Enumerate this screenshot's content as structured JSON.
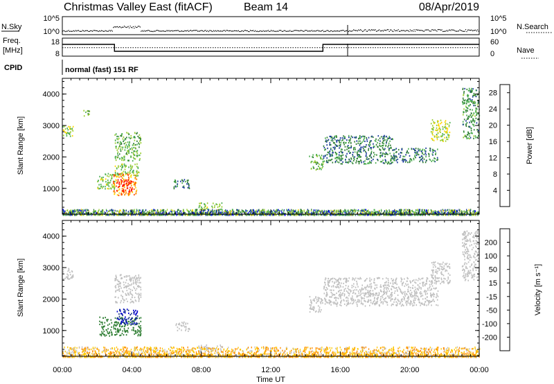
{
  "header": {
    "station": "Christmas Valley East (fitACF)",
    "beam": "Beam 14",
    "date": "08/Apr/2019"
  },
  "status_panels": {
    "nsky_label": "N.Sky",
    "nsearch_label": "N.Search",
    "noise_ticks": [
      "10^5",
      "10^0"
    ],
    "freq_label_line1": "Freq.",
    "freq_label_line2": "[MHz]",
    "freq_ticks": [
      "18",
      "8"
    ],
    "nave_label": "Nave",
    "nave_ticks": [
      "60",
      "0"
    ],
    "cpid_label": "CPID",
    "cpid_value": "normal (fast) 151 RF"
  },
  "colors": {
    "power_scale": [
      "#0000ff",
      "#1c3c9c",
      "#2e7d32",
      "#4caf50",
      "#9acd32",
      "#ffd700",
      "#ff8c00",
      "#ff4500",
      "#ff0000"
    ],
    "velocity_scale": [
      "#0000cc",
      "#1e3c8c",
      "#2e7d32",
      "#66cc33",
      "#c0c0c0",
      "#ffc800",
      "#ff8c00",
      "#ff5a00",
      "#ff0000"
    ],
    "ground_scatter": "#bebebe"
  },
  "chart_data": [
    {
      "type": "line",
      "name": "noise",
      "ylabel": "N.Sky",
      "yticks": [
        "10^5",
        "10^0"
      ],
      "description_series": [
        {
          "x": [
            0,
            2.9,
            3.0,
            4.5,
            16.4,
            24
          ],
          "y": [
            1.0,
            1.0,
            1.2,
            1.0,
            0.9,
            1.0
          ]
        }
      ]
    },
    {
      "type": "line",
      "name": "frequency",
      "ylabel": "Freq. [MHz]",
      "yticks": [
        "18",
        "8"
      ],
      "series": [
        {
          "x": [
            0,
            3.0,
            3.0,
            15.0,
            15.0,
            24
          ],
          "y": [
            14.5,
            14.5,
            9.5,
            9.5,
            14.5,
            14.5
          ]
        }
      ],
      "nave_series": {
        "x": [
          0,
          24
        ],
        "y": [
          33,
          33
        ]
      }
    },
    {
      "type": "heatmap",
      "name": "power",
      "xlabel": "",
      "ylabel": "Slant Range [km]",
      "xlim": [
        0,
        24
      ],
      "ylim": [
        180,
        4500
      ],
      "yticks": [
        1000,
        2000,
        3000,
        4000
      ],
      "colorbar": {
        "label": "Power [dB]",
        "ticks": [
          4,
          8,
          12,
          16,
          20,
          24,
          28
        ],
        "range": [
          0,
          30
        ]
      },
      "regions": [
        {
          "t0": 0.0,
          "t1": 0.6,
          "r0": 2600,
          "r1": 3000,
          "value": 14
        },
        {
          "t0": 1.2,
          "t1": 1.6,
          "r0": 3300,
          "r1": 3500,
          "value": 12
        },
        {
          "t0": 2.0,
          "t1": 3.1,
          "r0": 1000,
          "r1": 1500,
          "value": 14
        },
        {
          "t0": 2.9,
          "t1": 4.3,
          "r0": 800,
          "r1": 1500,
          "value": 22
        },
        {
          "t0": 3.1,
          "t1": 4.0,
          "r0": 900,
          "r1": 1300,
          "value": 28
        },
        {
          "t0": 3.0,
          "t1": 4.4,
          "r0": 1400,
          "r1": 1800,
          "value": 14
        },
        {
          "t0": 3.0,
          "t1": 4.5,
          "r0": 1900,
          "r1": 2800,
          "value": 12
        },
        {
          "t0": 6.4,
          "t1": 7.3,
          "r0": 1000,
          "r1": 1300,
          "value": 8
        },
        {
          "t0": 7.8,
          "t1": 9.2,
          "r0": 330,
          "r1": 560,
          "value": 14
        },
        {
          "t0": 14.2,
          "t1": 15.0,
          "r0": 1600,
          "r1": 2100,
          "value": 12
        },
        {
          "t0": 15.0,
          "t1": 19.0,
          "r0": 1800,
          "r1": 2700,
          "value": 8
        },
        {
          "t0": 19.0,
          "t1": 21.6,
          "r0": 1850,
          "r1": 2300,
          "value": 8
        },
        {
          "t0": 21.2,
          "t1": 22.3,
          "r0": 2500,
          "r1": 3200,
          "value": 16
        },
        {
          "t0": 23.0,
          "t1": 24.0,
          "r0": 2600,
          "r1": 4200,
          "value": 10
        }
      ],
      "near_range_band": {
        "r0": 180,
        "r1": 350,
        "value": 10
      }
    },
    {
      "type": "heatmap",
      "name": "velocity",
      "xlabel": "Time UT",
      "ylabel": "Slant Range [km]",
      "xlim": [
        0,
        24
      ],
      "ylim": [
        180,
        4500
      ],
      "xticks": [
        "00:00",
        "04:00",
        "08:00",
        "12:00",
        "16:00",
        "20:00",
        "00:00"
      ],
      "yticks": [
        1000,
        2000,
        3000,
        4000
      ],
      "colorbar": {
        "label": "Velocity [m s⁻¹]",
        "ticks": [
          200,
          100,
          50,
          15,
          -15,
          -50,
          -100,
          -200
        ],
        "range": [
          -250,
          250
        ]
      },
      "regions": [
        {
          "t0": 0.0,
          "t1": 0.6,
          "r0": 2600,
          "r1": 3000,
          "value": 0
        },
        {
          "t0": 2.1,
          "t1": 4.5,
          "r0": 850,
          "r1": 1450,
          "value": 60
        },
        {
          "t0": 3.1,
          "t1": 4.3,
          "r0": 1200,
          "r1": 1700,
          "value": 150
        },
        {
          "t0": 3.0,
          "t1": 4.5,
          "r0": 1900,
          "r1": 2800,
          "value": 0
        },
        {
          "t0": 6.5,
          "t1": 7.3,
          "r0": 1000,
          "r1": 1300,
          "value": 0
        },
        {
          "t0": 7.8,
          "t1": 9.2,
          "r0": 330,
          "r1": 560,
          "value": 0
        },
        {
          "t0": 14.2,
          "t1": 15.0,
          "r0": 1600,
          "r1": 2100,
          "value": 0
        },
        {
          "t0": 15.0,
          "t1": 21.6,
          "r0": 1800,
          "r1": 2700,
          "value": 0
        },
        {
          "t0": 21.2,
          "t1": 22.3,
          "r0": 2500,
          "r1": 3200,
          "value": 0
        },
        {
          "t0": 23.0,
          "t1": 24.0,
          "r0": 2600,
          "r1": 4200,
          "value": 0
        }
      ],
      "near_range_band": {
        "r0": 180,
        "r1": 500,
        "value": -40
      }
    }
  ]
}
